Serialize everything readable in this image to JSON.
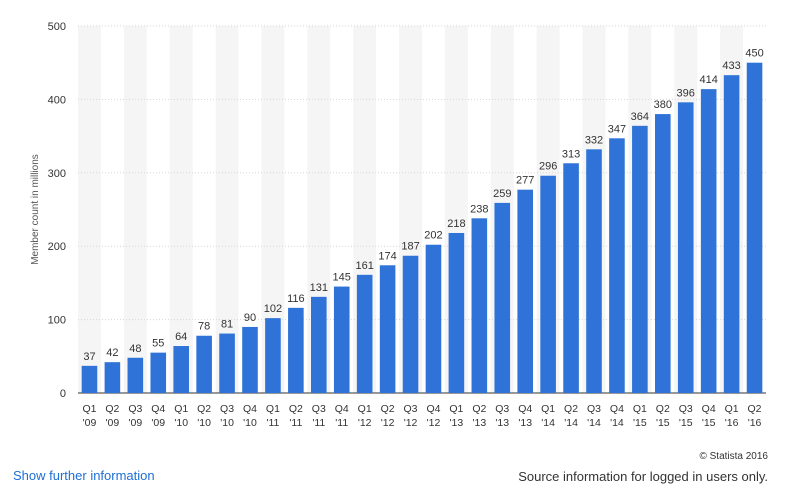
{
  "chart_data": {
    "type": "bar",
    "categories": [
      [
        "Q1",
        "'09"
      ],
      [
        "Q2",
        "'09"
      ],
      [
        "Q3",
        "'09"
      ],
      [
        "Q4",
        "'09"
      ],
      [
        "Q1",
        "'10"
      ],
      [
        "Q2",
        "'10"
      ],
      [
        "Q3",
        "'10"
      ],
      [
        "Q4",
        "'10"
      ],
      [
        "Q1",
        "'11"
      ],
      [
        "Q2",
        "'11"
      ],
      [
        "Q3",
        "'11"
      ],
      [
        "Q4",
        "'11"
      ],
      [
        "Q1",
        "'12"
      ],
      [
        "Q2",
        "'12"
      ],
      [
        "Q3",
        "'12"
      ],
      [
        "Q4",
        "'12"
      ],
      [
        "Q1",
        "'13"
      ],
      [
        "Q2",
        "'13"
      ],
      [
        "Q3",
        "'13"
      ],
      [
        "Q4",
        "'13"
      ],
      [
        "Q1",
        "'14"
      ],
      [
        "Q2",
        "'14"
      ],
      [
        "Q3",
        "'14"
      ],
      [
        "Q4",
        "'14"
      ],
      [
        "Q1",
        "'15"
      ],
      [
        "Q2",
        "'15"
      ],
      [
        "Q3",
        "'15"
      ],
      [
        "Q4",
        "'15"
      ],
      [
        "Q1",
        "'16"
      ],
      [
        "Q2",
        "'16"
      ]
    ],
    "values": [
      37,
      42,
      48,
      55,
      64,
      78,
      81,
      90,
      102,
      116,
      131,
      145,
      161,
      174,
      187,
      202,
      218,
      238,
      259,
      277,
      296,
      313,
      332,
      347,
      364,
      380,
      396,
      414,
      433,
      450
    ],
    "ylabel": "Member count in millions",
    "ylim": [
      0,
      500
    ],
    "yticks": [
      0,
      100,
      200,
      300,
      400,
      500
    ],
    "grid": true,
    "bar_color": "#2f73d8",
    "band_color": "#f5f5f5"
  },
  "footer": {
    "link_label": "Show further information",
    "copyright": "© Statista 2016",
    "source": "Source information for logged in users only."
  }
}
